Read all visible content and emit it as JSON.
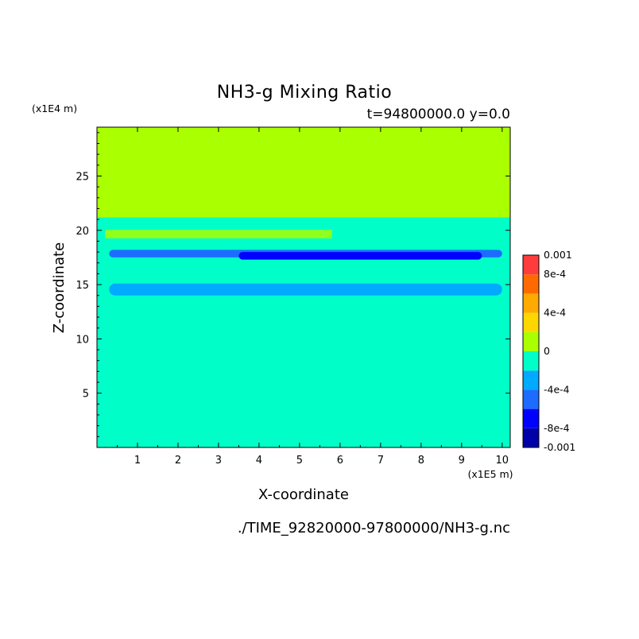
{
  "chart_data": {
    "type": "heatmap",
    "title": "NH3-g Mixing Ratio",
    "subtitle": "t=94800000.0 y=0.0",
    "xlabel": "X-coordinate",
    "ylabel": "Z-coordinate",
    "x_unit": "(x1E5 m)",
    "y_unit": "(x1E4 m)",
    "footer": "./TIME_92820000-97800000/NH3-g.nc",
    "xlim": [
      0,
      10.2
    ],
    "ylim": [
      0,
      29.5
    ],
    "x_ticks": [
      1,
      2,
      3,
      4,
      5,
      6,
      7,
      8,
      9,
      10
    ],
    "y_ticks": [
      5,
      10,
      15,
      20,
      25
    ],
    "colorbar": {
      "levels": [
        -0.001,
        -0.0008,
        -0.0006,
        -0.0004,
        -0.0002,
        0,
        0.0002,
        0.0004,
        0.0006,
        0.0008,
        0.001
      ],
      "colors": [
        "#0000a8",
        "#0000ff",
        "#1e6cff",
        "#00aaff",
        "#00ffc8",
        "#aaff00",
        "#ffd700",
        "#ffaa00",
        "#ff6a00",
        "#ff3c3c"
      ],
      "labels": [
        {
          "value": 0.001,
          "text": "0.001"
        },
        {
          "value": 0.0008,
          "text": "8e-4"
        },
        {
          "value": 0.0004,
          "text": "4e-4"
        },
        {
          "value": 0,
          "text": "0"
        },
        {
          "value": -0.0004,
          "text": "-4e-4"
        },
        {
          "value": -0.0008,
          "text": "-8e-4"
        },
        {
          "value": -0.001,
          "text": "-0.001"
        }
      ]
    },
    "regions": [
      {
        "name": "upper-layer",
        "x0": 0,
        "x1": 10.2,
        "z0": 21.2,
        "z1": 29.5,
        "value": 0.0001
      },
      {
        "name": "lower-layer",
        "x0": 0,
        "x1": 10.2,
        "z0": 0,
        "z1": 21.2,
        "value": -0.0001
      },
      {
        "name": "band-18km",
        "x0": 0.3,
        "x1": 10.0,
        "z0": 17.5,
        "z1": 18.2,
        "value": -0.0005
      },
      {
        "name": "band-18km-core",
        "x0": 3.5,
        "x1": 9.5,
        "z0": 17.3,
        "z1": 18.0,
        "value": -0.0007
      },
      {
        "name": "band-15km",
        "x0": 0.3,
        "x1": 10.0,
        "z0": 14.0,
        "z1": 15.1,
        "value": -0.0003
      },
      {
        "name": "filaments-20km",
        "x0": 0.2,
        "x1": 5.8,
        "z0": 19.0,
        "z1": 20.3,
        "value": 0.0001
      }
    ]
  }
}
